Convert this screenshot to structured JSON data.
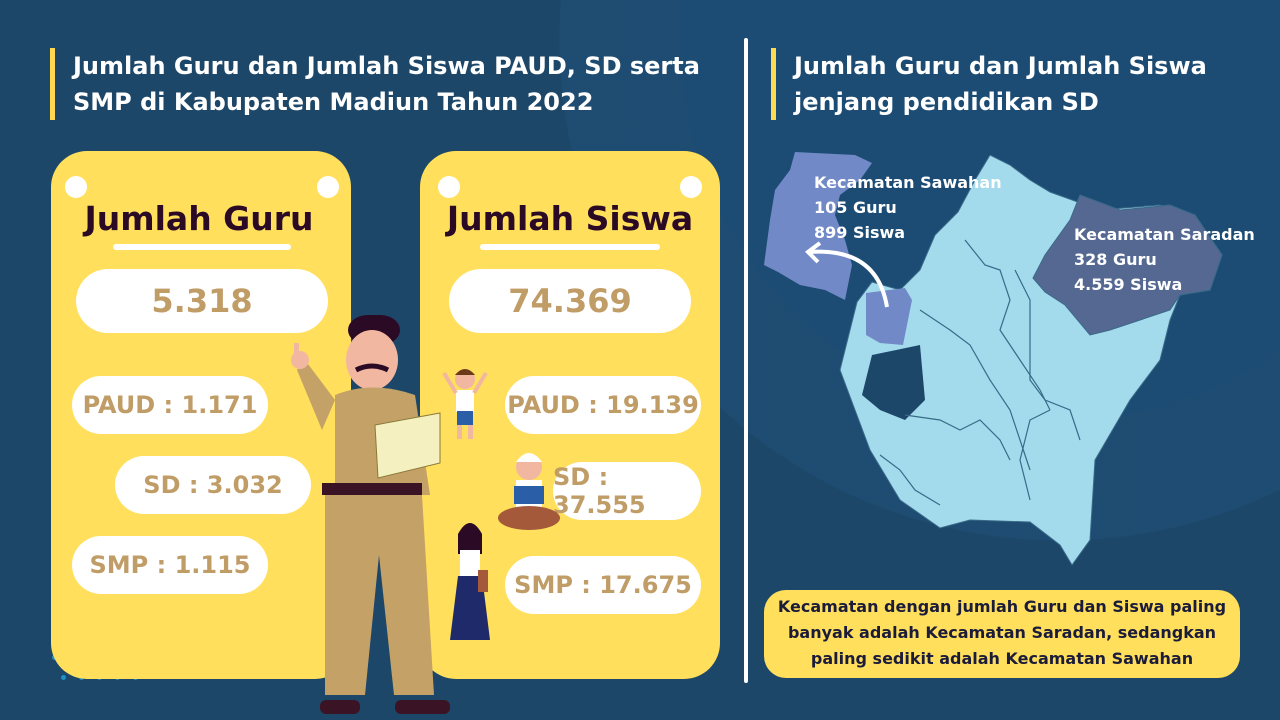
{
  "left_header": {
    "title": "Jumlah Guru dan Jumlah Siswa PAUD, SD serta SMP di Kabupaten Madiun Tahun 2022"
  },
  "right_header": {
    "title": "Jumlah Guru dan Jumlah Siswa jenjang pendidikan SD"
  },
  "guru_card": {
    "title": "Jumlah Guru",
    "total": "5.318",
    "paud": "PAUD : 1.171",
    "sd": "SD : 3.032",
    "smp": "SMP : 1.115"
  },
  "siswa_card": {
    "title": "Jumlah Siswa",
    "total": "74.369",
    "paud": "PAUD : 19.139",
    "sd": "SD : 37.555",
    "smp": "SMP : 17.675"
  },
  "map": {
    "sawahan": {
      "name": "Kecamatan Sawahan",
      "guru": "105 Guru",
      "siswa": "899 Siswa"
    },
    "saradan": {
      "name": "Kecamatan Saradan",
      "guru": "328 Guru",
      "siswa": "4.559 Siswa"
    },
    "colors": {
      "base": "#a3dbec",
      "sawahan": "#7189c6",
      "saradan": "#546891"
    }
  },
  "note": {
    "text": "Kecamatan dengan jumlah Guru dan Siswa paling banyak adalah Kecamatan Saradan, sedangkan paling sedikit adalah Kecamatan Sawahan"
  },
  "colors": {
    "background": "#1d4769",
    "card": "#ffdf5b",
    "accent": "#ffd94e",
    "number": "#c09c66"
  }
}
